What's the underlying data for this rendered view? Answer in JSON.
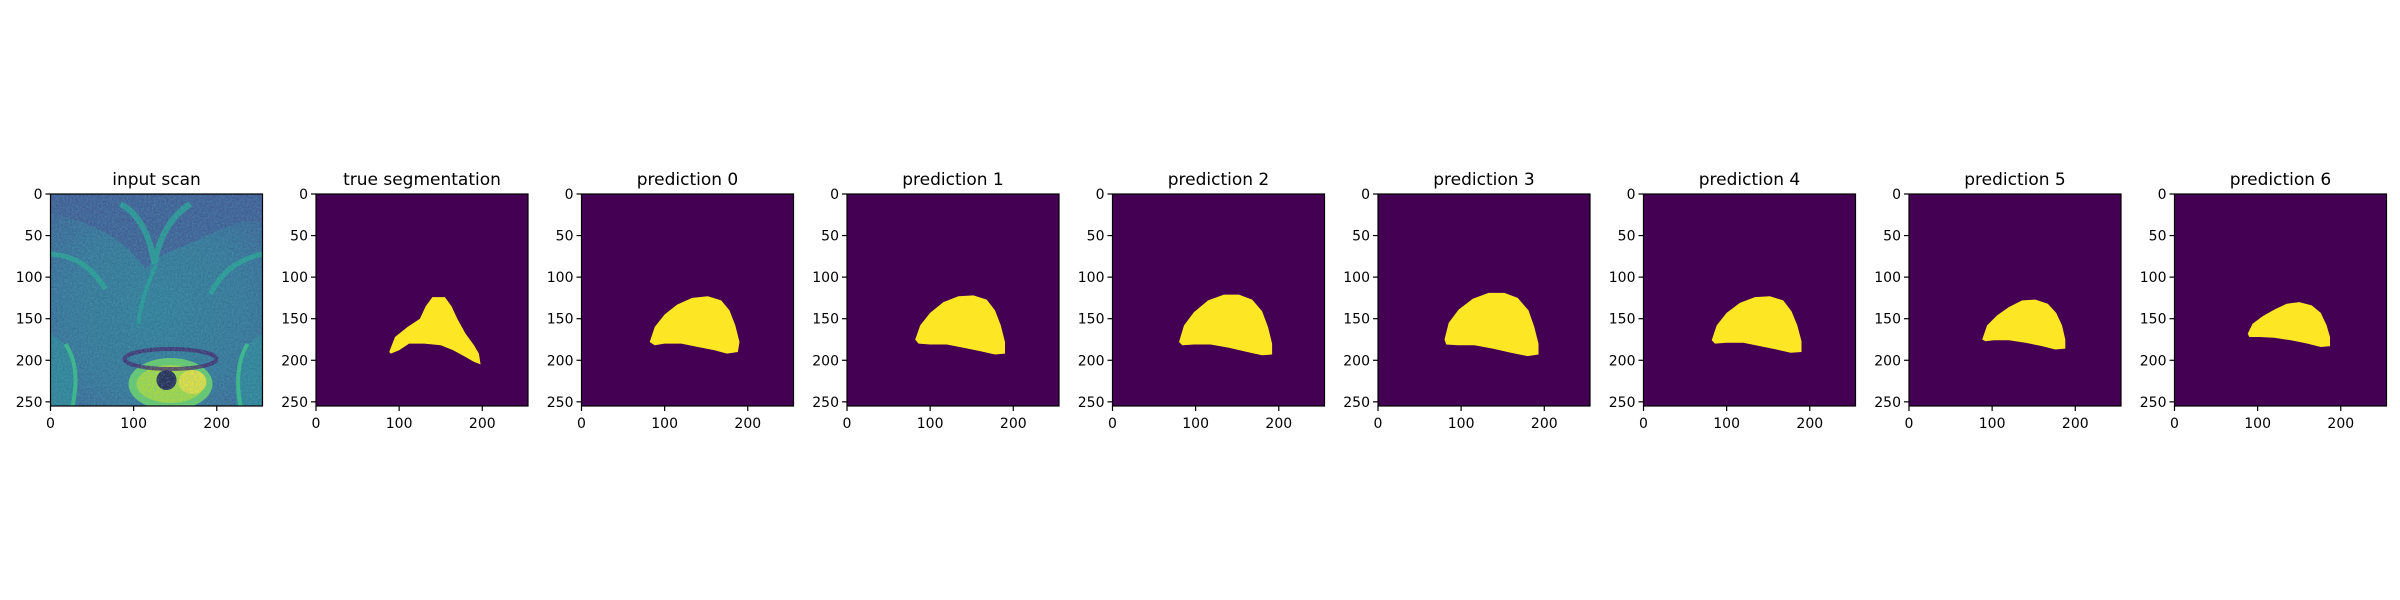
{
  "figure": {
    "colors": {
      "background": "#440154",
      "foreground": "#fde725"
    }
  },
  "chart_data": [
    {
      "type": "heatmap",
      "title": "input scan",
      "image": "mri-scan",
      "xlim": [
        0,
        255
      ],
      "ylim": [
        255,
        0
      ],
      "xticks": [
        0,
        100,
        200
      ],
      "yticks": [
        0,
        50,
        100,
        150,
        200,
        250
      ]
    },
    {
      "type": "heatmap",
      "title": "true segmentation",
      "image": "mask",
      "xlim": [
        0,
        255
      ],
      "ylim": [
        255,
        0
      ],
      "xticks": [
        0,
        100,
        200
      ],
      "yticks": [
        0,
        50,
        100,
        150,
        200,
        250
      ],
      "mask_outline": [
        [
          88,
          190
        ],
        [
          95,
          172
        ],
        [
          110,
          160
        ],
        [
          125,
          150
        ],
        [
          132,
          135
        ],
        [
          140,
          124
        ],
        [
          155,
          124
        ],
        [
          163,
          135
        ],
        [
          170,
          150
        ],
        [
          180,
          168
        ],
        [
          190,
          182
        ],
        [
          196,
          192
        ],
        [
          198,
          205
        ],
        [
          190,
          202
        ],
        [
          178,
          195
        ],
        [
          165,
          188
        ],
        [
          150,
          182
        ],
        [
          130,
          180
        ],
        [
          112,
          180
        ],
        [
          100,
          188
        ],
        [
          90,
          192
        ]
      ]
    },
    {
      "type": "heatmap",
      "title": "prediction 0",
      "image": "mask",
      "xlim": [
        0,
        255
      ],
      "ylim": [
        255,
        0
      ],
      "xticks": [
        0,
        100,
        200
      ],
      "yticks": [
        0,
        50,
        100,
        150,
        200,
        250
      ],
      "mask_outline": [
        [
          82,
          178
        ],
        [
          88,
          160
        ],
        [
          100,
          145
        ],
        [
          115,
          133
        ],
        [
          133,
          125
        ],
        [
          152,
          123
        ],
        [
          168,
          128
        ],
        [
          178,
          140
        ],
        [
          185,
          158
        ],
        [
          190,
          178
        ],
        [
          188,
          190
        ],
        [
          175,
          192
        ],
        [
          160,
          188
        ],
        [
          140,
          184
        ],
        [
          120,
          180
        ],
        [
          100,
          180
        ],
        [
          88,
          182
        ]
      ]
    },
    {
      "type": "heatmap",
      "title": "prediction 1",
      "image": "mask",
      "xlim": [
        0,
        255
      ],
      "ylim": [
        255,
        0
      ],
      "xticks": [
        0,
        100,
        200
      ],
      "yticks": [
        0,
        50,
        100,
        150,
        200,
        250
      ],
      "mask_outline": [
        [
          82,
          175
        ],
        [
          88,
          158
        ],
        [
          100,
          143
        ],
        [
          116,
          130
        ],
        [
          134,
          123
        ],
        [
          152,
          122
        ],
        [
          168,
          127
        ],
        [
          178,
          140
        ],
        [
          185,
          158
        ],
        [
          190,
          178
        ],
        [
          190,
          192
        ],
        [
          178,
          193
        ],
        [
          160,
          189
        ],
        [
          140,
          185
        ],
        [
          120,
          181
        ],
        [
          100,
          181
        ],
        [
          86,
          180
        ]
      ]
    },
    {
      "type": "heatmap",
      "title": "prediction 2",
      "image": "mask",
      "xlim": [
        0,
        255
      ],
      "ylim": [
        255,
        0
      ],
      "xticks": [
        0,
        100,
        200
      ],
      "yticks": [
        0,
        50,
        100,
        150,
        200,
        250
      ],
      "mask_outline": [
        [
          80,
          178
        ],
        [
          86,
          158
        ],
        [
          98,
          142
        ],
        [
          115,
          128
        ],
        [
          134,
          121
        ],
        [
          152,
          121
        ],
        [
          168,
          127
        ],
        [
          180,
          141
        ],
        [
          187,
          160
        ],
        [
          192,
          180
        ],
        [
          192,
          193
        ],
        [
          180,
          194
        ],
        [
          162,
          190
        ],
        [
          140,
          185
        ],
        [
          118,
          181
        ],
        [
          98,
          181
        ],
        [
          84,
          182
        ]
      ]
    },
    {
      "type": "heatmap",
      "title": "prediction 3",
      "image": "mask",
      "xlim": [
        0,
        255
      ],
      "ylim": [
        255,
        0
      ],
      "xticks": [
        0,
        100,
        200
      ],
      "yticks": [
        0,
        50,
        100,
        150,
        200,
        250
      ],
      "mask_outline": [
        [
          80,
          175
        ],
        [
          85,
          155
        ],
        [
          97,
          139
        ],
        [
          114,
          126
        ],
        [
          133,
          119
        ],
        [
          152,
          119
        ],
        [
          168,
          125
        ],
        [
          181,
          140
        ],
        [
          188,
          160
        ],
        [
          193,
          180
        ],
        [
          193,
          193
        ],
        [
          180,
          195
        ],
        [
          160,
          191
        ],
        [
          138,
          186
        ],
        [
          116,
          182
        ],
        [
          96,
          182
        ],
        [
          82,
          181
        ]
      ]
    },
    {
      "type": "heatmap",
      "title": "prediction 4",
      "image": "mask",
      "xlim": [
        0,
        255
      ],
      "ylim": [
        255,
        0
      ],
      "xticks": [
        0,
        100,
        200
      ],
      "yticks": [
        0,
        50,
        100,
        150,
        200,
        250
      ],
      "mask_outline": [
        [
          82,
          176
        ],
        [
          88,
          158
        ],
        [
          100,
          143
        ],
        [
          116,
          131
        ],
        [
          134,
          124
        ],
        [
          152,
          123
        ],
        [
          168,
          128
        ],
        [
          178,
          141
        ],
        [
          185,
          158
        ],
        [
          190,
          177
        ],
        [
          190,
          190
        ],
        [
          177,
          191
        ],
        [
          160,
          187
        ],
        [
          140,
          183
        ],
        [
          120,
          179
        ],
        [
          100,
          179
        ],
        [
          86,
          180
        ]
      ]
    },
    {
      "type": "heatmap",
      "title": "prediction 5",
      "image": "mask",
      "xlim": [
        0,
        255
      ],
      "ylim": [
        255,
        0
      ],
      "xticks": [
        0,
        100,
        200
      ],
      "yticks": [
        0,
        50,
        100,
        150,
        200,
        250
      ],
      "mask_outline": [
        [
          88,
          175
        ],
        [
          94,
          158
        ],
        [
          106,
          146
        ],
        [
          120,
          136
        ],
        [
          136,
          128
        ],
        [
          152,
          127
        ],
        [
          167,
          132
        ],
        [
          177,
          143
        ],
        [
          184,
          158
        ],
        [
          188,
          175
        ],
        [
          188,
          186
        ],
        [
          176,
          187
        ],
        [
          160,
          183
        ],
        [
          140,
          179
        ],
        [
          120,
          176
        ],
        [
          102,
          176
        ],
        [
          92,
          177
        ]
      ]
    },
    {
      "type": "heatmap",
      "title": "prediction 6",
      "image": "mask",
      "xlim": [
        0,
        255
      ],
      "ylim": [
        255,
        0
      ],
      "xticks": [
        0,
        100,
        200
      ],
      "yticks": [
        0,
        50,
        100,
        150,
        200,
        250
      ],
      "mask_outline": [
        [
          88,
          168
        ],
        [
          94,
          156
        ],
        [
          106,
          147
        ],
        [
          120,
          139
        ],
        [
          135,
          132
        ],
        [
          150,
          130
        ],
        [
          165,
          134
        ],
        [
          176,
          143
        ],
        [
          183,
          158
        ],
        [
          187,
          172
        ],
        [
          187,
          183
        ],
        [
          176,
          184
        ],
        [
          160,
          180
        ],
        [
          140,
          176
        ],
        [
          120,
          173
        ],
        [
          102,
          172
        ],
        [
          90,
          172
        ]
      ]
    }
  ]
}
